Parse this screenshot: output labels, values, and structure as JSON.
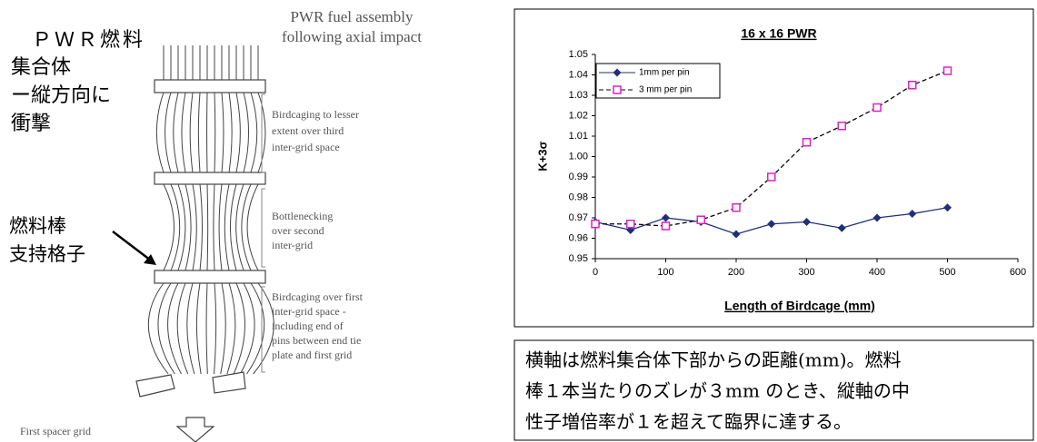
{
  "chart_data": {
    "type": "line",
    "title": "16 x 16 PWR",
    "x_label": "Length of Birdcage (mm)",
    "y_label": "K+3σ",
    "x": [
      0,
      50,
      100,
      150,
      200,
      250,
      300,
      350,
      400,
      450,
      500
    ],
    "series": [
      {
        "name": "1mm per pin",
        "color": "#1f2f7a",
        "marker": "diamond",
        "line_style": "solid",
        "values": [
          0.968,
          0.964,
          0.97,
          0.968,
          0.962,
          0.967,
          0.968,
          0.965,
          0.97,
          0.972,
          0.975
        ]
      },
      {
        "name": "3 mm per pin",
        "color": "#e020c8",
        "marker": "square",
        "line_style": "dashed",
        "values": [
          0.967,
          0.967,
          0.966,
          0.969,
          0.975,
          0.99,
          1.007,
          1.015,
          1.024,
          1.035,
          1.042
        ]
      }
    ],
    "xlim": [
      0,
      600
    ],
    "xticks": [
      0,
      100,
      200,
      300,
      400,
      500,
      600
    ],
    "ylim": [
      0.95,
      1.05
    ],
    "yticks": [
      0.95,
      0.96,
      0.97,
      0.98,
      0.99,
      {
        "value": 1,
        "label": "1.00"
      },
      1.01,
      1.02,
      1.03,
      1.04,
      1.05
    ],
    "legend": "upper left"
  },
  "diagram": {
    "title_lines": [
      "PWR fuel assembly",
      "following axial impact"
    ],
    "jp_title_lines": [
      "ＰＷＲ燃料",
      "集合体",
      "ー縦方向に",
      "衝撃"
    ],
    "jp_grid_lines": [
      "燃料棒",
      "支持格子"
    ],
    "notes": [
      [
        "Birdcaging to lesser",
        "extent over third",
        "inter-grid space"
      ],
      [
        "Bottlenecking",
        "over second",
        "inter-grid"
      ],
      [
        "Birdcaging over first",
        "inter-grid space -",
        "including end of",
        "pins between end tie",
        "plate and first grid"
      ]
    ],
    "first_grid": "First spacer grid"
  },
  "caption": [
    "横軸は燃料集合体下部からの距離(mm)。燃料",
    "棒１本当たりのズレが３mm のとき、縦軸の中",
    "性子増倍率が１を超えて臨界に達する。"
  ]
}
